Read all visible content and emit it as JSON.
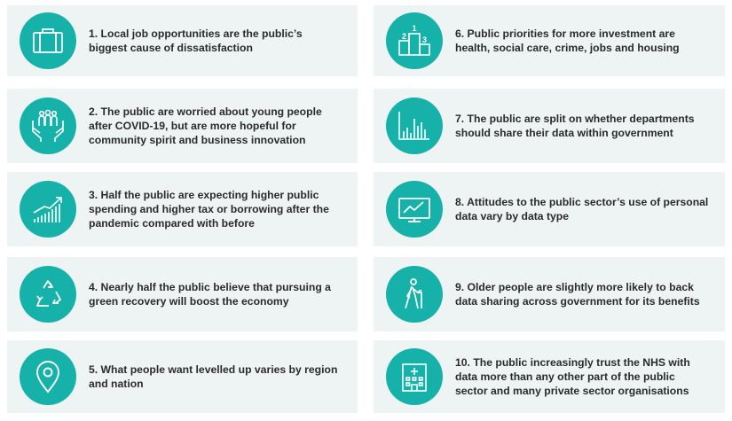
{
  "accent_color": "#16b2aa",
  "card_background": "#eef3f3",
  "items": [
    {
      "text": "1. Local job opportunities are the public’s biggest cause of dissatisfaction",
      "icon": "briefcase-icon"
    },
    {
      "text": "2. The public are worried about young people after COVID-19, but are more hopeful for community spirit and business innovation",
      "icon": "people-in-hands-icon"
    },
    {
      "text": "3. Half the public are expecting higher public spending and higher tax or borrowing after the pandemic compared with before",
      "icon": "rising-bar-chart-icon"
    },
    {
      "text": "4. Nearly half the public believe that pursuing a green recovery will boost the economy",
      "icon": "recycle-icon"
    },
    {
      "text": "5. What people want levelled up varies by region and nation",
      "icon": "map-pin-icon"
    },
    {
      "text": "6. Public priorities for more investment are health, social care, crime, jobs and housing",
      "icon": "podium-icon",
      "podium_labels": [
        "2",
        "1",
        "3"
      ]
    },
    {
      "text": "7. The public are split on whether departments should share their data within government",
      "icon": "bar-chart-icon"
    },
    {
      "text": "8. Attitudes to the public sector’s use of personal data vary by data type",
      "icon": "monitor-chart-icon"
    },
    {
      "text": "9. Older people are slightly more likely to back data sharing across government for its benefits",
      "icon": "elderly-person-icon"
    },
    {
      "text": "10. The public increasingly trust the NHS with data more than any other part of the public sector and many private sector organisations",
      "icon": "hospital-icon"
    }
  ]
}
